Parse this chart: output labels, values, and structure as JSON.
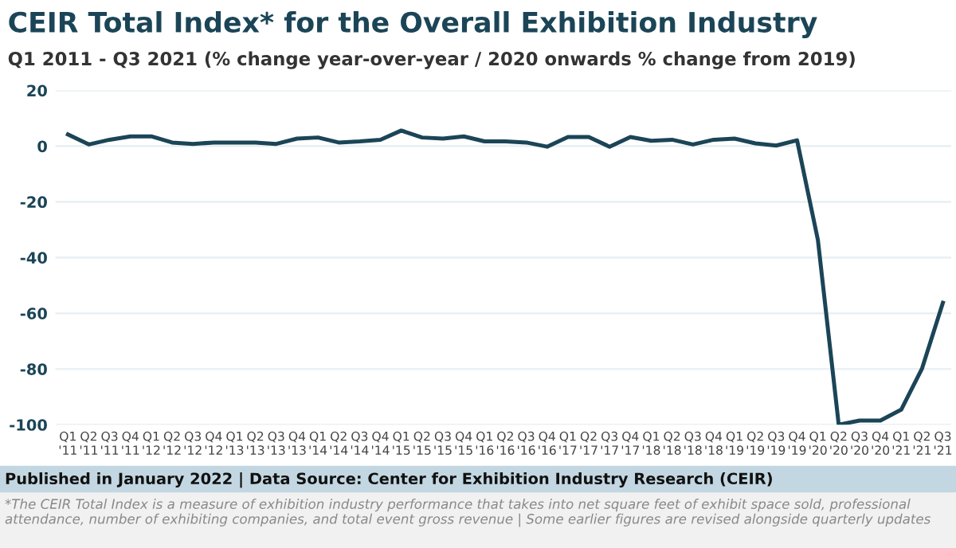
{
  "chart_data": {
    "type": "line",
    "title": "CEIR Total Index* for the Overall Exhibition Industry",
    "subtitle": "Q1 2011 - Q3 2021 (% change year-over-year / 2020 onwards % change from 2019)",
    "categories": [
      "Q1\n'11",
      "Q2\n'11",
      "Q3\n'11",
      "Q4\n'11",
      "Q1\n'12",
      "Q2\n'12",
      "Q3\n'12",
      "Q4\n'12",
      "Q1\n'13",
      "Q2\n'13",
      "Q3\n'13",
      "Q4\n'13",
      "Q1\n'14",
      "Q2\n'14",
      "Q3\n'14",
      "Q4\n'14",
      "Q1\n'15",
      "Q2\n'15",
      "Q3\n'15",
      "Q4\n'15",
      "Q1\n'16",
      "Q2\n'16",
      "Q3\n'16",
      "Q4\n'16",
      "Q1\n'17",
      "Q2\n'17",
      "Q3\n'17",
      "Q4\n'17",
      "Q1\n'18",
      "Q2\n'18",
      "Q3\n'18",
      "Q4\n'18",
      "Q1\n'19",
      "Q2\n'19",
      "Q3\n'19",
      "Q4\n'19",
      "Q1\n'20",
      "Q2\n'20",
      "Q3\n'20",
      "Q4\n'20",
      "Q1\n'21",
      "Q2\n'21",
      "Q3\n'21"
    ],
    "series": [
      {
        "color": "#1b4557",
        "values": [
          4.2,
          0.6,
          2.3,
          3.5,
          3.5,
          1.3,
          0.8,
          1.3,
          1.3,
          1.3,
          0.8,
          2.7,
          3.1,
          1.3,
          1.7,
          2.3,
          5.6,
          3.1,
          2.7,
          3.5,
          1.7,
          1.7,
          1.3,
          -0.2,
          3.3,
          3.3,
          -0.2,
          3.3,
          1.9,
          2.3,
          0.6,
          2.3,
          2.7,
          1.0,
          0.2,
          2.1,
          -33.7,
          -100,
          -98.5,
          -98.5,
          -94.6,
          -79.8,
          -56.2
        ]
      }
    ],
    "ylim": [
      -100,
      20
    ],
    "yticks": [
      -100,
      -80,
      -60,
      -40,
      -20,
      0,
      20
    ],
    "grid": "y",
    "marker": "none",
    "line_style": "solid",
    "annotations": [
      "Published in January 2022 | Data Source: Center for Exhibition Industry Research (CEIR)",
      "*The CEIR Total Index is a measure of exhibition industry performance that takes into net square feet of exhibit space sold, professional attendance, number of exhibiting companies, and total event gross revenue | Some earlier figures are revised alongside quarterly updates"
    ]
  }
}
